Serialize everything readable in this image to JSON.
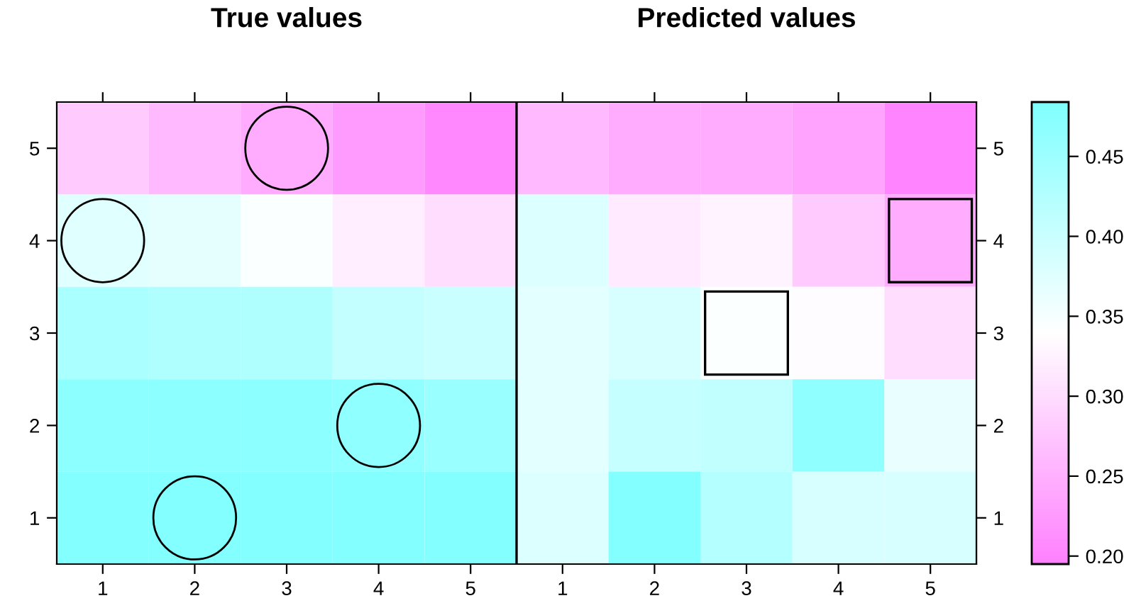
{
  "chart_data": {
    "type": "heatmap",
    "annotations": [
      "True values",
      "Predicted values"
    ],
    "categories": [
      "1",
      "2",
      "3",
      "4",
      "5",
      "1",
      "2",
      "3",
      "4",
      "5"
    ],
    "y_categories": [
      "5",
      "4",
      "3",
      "2",
      "1"
    ],
    "y2_categories": [
      "5",
      "4",
      "3",
      "2",
      "1"
    ],
    "cells": [
      [
        0.28,
        0.26,
        0.245,
        0.225,
        0.205,
        0.26,
        0.245,
        0.245,
        0.235,
        0.2
      ],
      [
        0.375,
        0.369,
        0.346,
        0.32,
        0.3,
        0.38,
        0.315,
        0.325,
        0.28,
        0.245
      ],
      [
        0.436,
        0.43,
        0.43,
        0.407,
        0.4,
        0.37,
        0.385,
        0.345,
        0.335,
        0.3
      ],
      [
        0.47,
        0.47,
        0.47,
        0.465,
        0.455,
        0.37,
        0.405,
        0.41,
        0.465,
        0.365
      ],
      [
        0.48,
        0.48,
        0.48,
        0.48,
        0.48,
        0.38,
        0.48,
        0.425,
        0.385,
        0.385
      ]
    ],
    "clim": [
      0.195,
      0.484
    ],
    "cticks": [
      {
        "value": 0.2,
        "label": "0.20"
      },
      0.25,
      {
        "value": 0.3,
        "label": "0.30"
      },
      0.35,
      {
        "value": 0.4,
        "label": "0.40"
      },
      0.45
    ]
  }
}
